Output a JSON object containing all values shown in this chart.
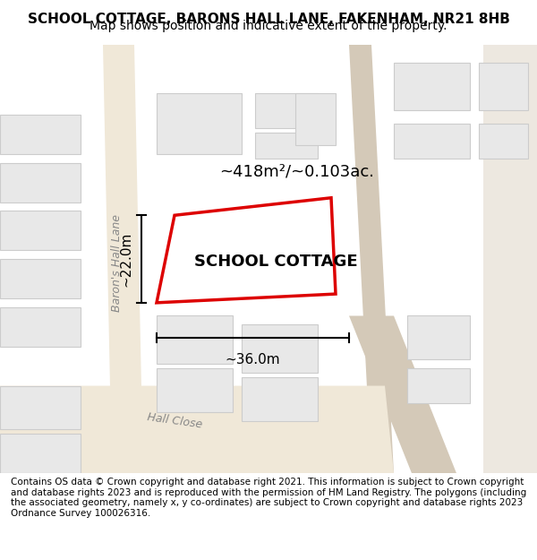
{
  "title": "SCHOOL COTTAGE, BARONS HALL LANE, FAKENHAM, NR21 8HB",
  "subtitle": "Map shows position and indicative extent of the property.",
  "footer": "Contains OS data © Crown copyright and database right 2021. This information is subject to Crown copyright and database rights 2023 and is reproduced with the permission of HM Land Registry. The polygons (including the associated geometry, namely x, y co-ordinates) are subject to Crown copyright and database rights 2023 Ordnance Survey 100026316.",
  "property_label": "SCHOOL COTTAGE",
  "area_label": "~418m²/~0.103ac.",
  "dim_h": "~22.0m",
  "dim_w": "~36.0m",
  "street_label": "Baron's Hall Lane",
  "street_label2": "Hall Close",
  "bg_color": "#f5f5f0",
  "map_bg": "#ffffff",
  "road_color": "#d4c9b8",
  "building_fill": "#e8e8e8",
  "building_edge": "#cccccc",
  "red_line_color": "#dd0000",
  "road_line_color": "#e8d5c0",
  "minor_road_color": "#f0e8d8",
  "title_fontsize": 11,
  "subtitle_fontsize": 10,
  "footer_fontsize": 7.5
}
